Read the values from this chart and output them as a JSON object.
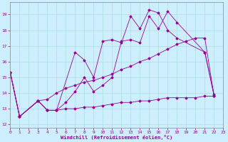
{
  "bg_color": "#cceeff",
  "grid_color": "#aadddd",
  "line_color": "#990099",
  "xlabel": "Windchill (Refroidissement éolien,°C)",
  "xlim": [
    0,
    23
  ],
  "ylim": [
    11.8,
    19.8
  ],
  "yticks": [
    12,
    13,
    14,
    15,
    16,
    17,
    18,
    19
  ],
  "xticks": [
    0,
    1,
    2,
    3,
    4,
    5,
    6,
    7,
    8,
    9,
    10,
    11,
    12,
    13,
    14,
    15,
    16,
    17,
    18,
    19,
    20,
    21,
    22,
    23
  ],
  "series": [
    {
      "x": [
        0,
        1,
        3,
        4,
        5,
        7,
        8,
        9,
        10,
        11,
        12,
        13,
        14,
        15,
        16,
        17,
        18,
        21,
        22
      ],
      "y": [
        15.3,
        12.5,
        13.5,
        12.9,
        12.9,
        16.6,
        16.1,
        15.0,
        17.3,
        17.4,
        17.2,
        18.9,
        18.1,
        19.3,
        19.1,
        18.0,
        17.5,
        16.6,
        13.8
      ]
    },
    {
      "x": [
        0,
        1,
        3,
        4,
        5,
        6,
        7,
        8,
        9,
        10,
        11,
        12,
        13,
        14,
        15,
        16,
        17,
        18,
        21,
        22
      ],
      "y": [
        15.3,
        12.5,
        13.5,
        12.9,
        12.9,
        13.4,
        14.1,
        15.0,
        14.1,
        14.5,
        15.0,
        17.3,
        17.4,
        17.2,
        18.9,
        18.1,
        19.2,
        18.5,
        16.6,
        13.9
      ]
    },
    {
      "x": [
        0,
        1,
        3,
        4,
        5,
        6,
        7,
        8,
        9,
        10,
        11,
        12,
        13,
        14,
        15,
        16,
        17,
        18,
        19,
        20,
        21,
        22
      ],
      "y": [
        15.3,
        12.5,
        13.5,
        13.6,
        14.0,
        14.3,
        14.5,
        14.7,
        14.8,
        15.0,
        15.2,
        15.5,
        15.7,
        16.0,
        16.2,
        16.5,
        16.8,
        17.1,
        17.3,
        17.5,
        17.5,
        13.8
      ]
    },
    {
      "x": [
        0,
        1,
        3,
        4,
        5,
        6,
        7,
        8,
        9,
        10,
        11,
        12,
        13,
        14,
        15,
        16,
        17,
        18,
        19,
        20,
        21,
        22
      ],
      "y": [
        15.3,
        12.5,
        13.5,
        12.9,
        12.9,
        13.0,
        13.0,
        13.1,
        13.1,
        13.2,
        13.3,
        13.4,
        13.4,
        13.5,
        13.5,
        13.6,
        13.7,
        13.7,
        13.7,
        13.7,
        13.8,
        13.8
      ]
    }
  ]
}
